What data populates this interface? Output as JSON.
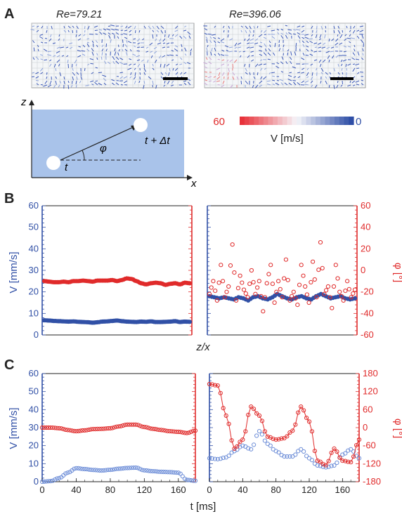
{
  "panels": {
    "A": "A",
    "B": "B",
    "C": "C"
  },
  "piv": {
    "left_label": "Re=79.21",
    "right_label": "Re=396.06"
  },
  "schematic": {
    "z": "z",
    "x": "x",
    "phi": "φ",
    "t": "t",
    "t_dt": "t + Δt"
  },
  "colorbar": {
    "max": "60",
    "min": "0",
    "label": "V [m/s]",
    "color_high": "#e8323a",
    "color_low": "#2e4ea6"
  },
  "colors": {
    "blue": "#3150a6",
    "red": "#e02b2b"
  },
  "axes_text": {
    "v_label": "V [mm/s]",
    "phi_label": "φ [°]",
    "b_xlabel": "z/x",
    "c_xlabel": "t [ms]"
  },
  "chart_data": [
    {
      "id": "B-left",
      "type": "scatter",
      "ylim_left": [
        0,
        60
      ],
      "ylim_right": [
        -60,
        60
      ],
      "left_ticks": [
        "0",
        "10",
        "20",
        "30",
        "40",
        "50",
        "60"
      ],
      "series": [
        {
          "axis": "left",
          "color": "#3150a6",
          "y": [
            6.8,
            6.7,
            6.5,
            6.4,
            6.3,
            6.2,
            6.3,
            6.1,
            6.0,
            5.9,
            5.7,
            5.9,
            6.2,
            6.3,
            6.5,
            6.7,
            6.4,
            6.2,
            6.1,
            6.0,
            6.2,
            6.1,
            6.3,
            6.0,
            6.0,
            6.1,
            6.2,
            6.4,
            6.0,
            6.2,
            6.1
          ]
        },
        {
          "axis": "right",
          "color": "#e02b2b",
          "y": [
            -10,
            -10.5,
            -11,
            -11,
            -10.5,
            -11,
            -10,
            -10,
            -9.5,
            -10,
            -10.5,
            -9.5,
            -9.5,
            -9.5,
            -9,
            -10,
            -9,
            -7.5,
            -8,
            -10,
            -12,
            -13,
            -12,
            -11.5,
            -12,
            -13.5,
            -12.5,
            -12,
            -13,
            -11.5,
            -12
          ]
        }
      ]
    },
    {
      "id": "B-right",
      "type": "scatter",
      "ylim_left": [
        0,
        60
      ],
      "ylim_right": [
        -60,
        60
      ],
      "right_ticks": [
        "-60",
        "-40",
        "-20",
        "0",
        "20",
        "40",
        "60"
      ],
      "series": [
        {
          "axis": "left",
          "color": "#3150a6",
          "y": [
            18,
            17.5,
            17,
            17.5,
            17,
            16.5,
            17.5,
            17,
            16,
            17.5,
            18,
            17,
            16.5,
            17.5,
            19,
            18,
            17,
            16.5,
            17.5,
            18,
            17,
            16.5,
            18,
            19,
            18,
            17,
            17.5,
            18,
            17,
            16.5,
            17
          ]
        },
        {
          "axis": "right",
          "color": "#e02b2b",
          "y": [
            -22,
            -10,
            -28,
            5,
            -25,
            -15,
            24,
            -28,
            -5,
            -18,
            -25,
            0,
            -22,
            -10,
            -38,
            -12,
            5,
            -30,
            -10,
            -25,
            10,
            -28,
            -20,
            -32,
            5,
            -15,
            -30,
            8,
            -25,
            26,
            -22,
            -15,
            -35,
            5,
            -20,
            -28,
            -10,
            -25,
            -18
          ]
        }
      ]
    },
    {
      "id": "C-left",
      "type": "scatter",
      "x": [
        0,
        10,
        20,
        30,
        40,
        50,
        60,
        70,
        80,
        90,
        100,
        110,
        120,
        130,
        140,
        150,
        160,
        170,
        180
      ],
      "xlim": [
        0,
        180
      ],
      "ylim_left": [
        0,
        60
      ],
      "ylim_right": [
        -180,
        180
      ],
      "left_ticks": [
        "0",
        "10",
        "20",
        "30",
        "40",
        "50",
        "60"
      ],
      "x_ticks": [
        "0",
        "40",
        "80",
        "120",
        "160"
      ],
      "series": [
        {
          "axis": "left",
          "color": "#6f8fd8",
          "y": [
            0,
            0.3,
            2,
            5,
            7.5,
            7,
            6.5,
            6.2,
            6.6,
            7.2,
            7.6,
            7.8,
            6.3,
            5.8,
            5.5,
            5.3,
            5,
            1,
            0.5
          ]
        },
        {
          "axis": "right",
          "color": "#e02b2b",
          "y": [
            0,
            0,
            -2,
            -8,
            -12,
            -9,
            -5,
            -4,
            -2,
            4,
            10,
            10,
            2,
            -4,
            -8,
            -12,
            -14,
            -18,
            -10
          ]
        }
      ]
    },
    {
      "id": "C-right",
      "type": "scatter",
      "x": [
        0,
        10,
        20,
        30,
        40,
        50,
        60,
        70,
        80,
        90,
        100,
        110,
        120,
        130,
        140,
        150,
        160,
        170,
        180
      ],
      "xlim": [
        0,
        180
      ],
      "ylim_left": [
        0,
        60
      ],
      "ylim_right": [
        -180,
        180
      ],
      "right_ticks": [
        "-180",
        "-120",
        "-60",
        "0",
        "60",
        "120",
        "180"
      ],
      "x_ticks": [
        "0",
        "40",
        "80",
        "120",
        "160"
      ],
      "series": [
        {
          "axis": "left",
          "color": "#6f8fd8",
          "y": [
            13,
            12.5,
            13.5,
            17,
            20,
            18,
            28,
            21,
            17,
            14,
            14,
            18,
            13,
            9,
            8,
            9,
            15,
            18,
            13
          ]
        },
        {
          "axis": "right",
          "color": "#e02b2b",
          "y": [
            145,
            140,
            40,
            -70,
            -40,
            70,
            40,
            -30,
            -40,
            -35,
            -10,
            70,
            20,
            -110,
            -125,
            -70,
            -110,
            -115,
            -40
          ]
        }
      ]
    }
  ]
}
